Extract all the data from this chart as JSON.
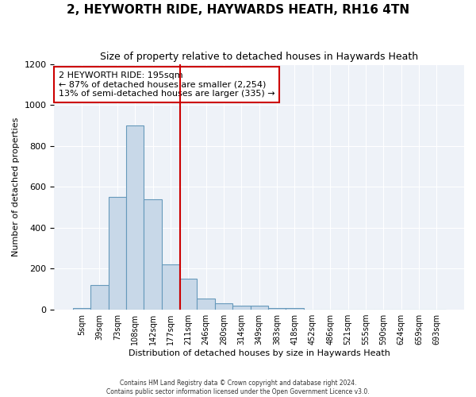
{
  "title": "2, HEYWORTH RIDE, HAYWARDS HEATH, RH16 4TN",
  "subtitle": "Size of property relative to detached houses in Haywards Heath",
  "xlabel": "Distribution of detached houses by size in Haywards Heath",
  "ylabel": "Number of detached properties",
  "bin_labels": [
    "5sqm",
    "39sqm",
    "73sqm",
    "108sqm",
    "142sqm",
    "177sqm",
    "211sqm",
    "246sqm",
    "280sqm",
    "314sqm",
    "349sqm",
    "383sqm",
    "418sqm",
    "452sqm",
    "486sqm",
    "521sqm",
    "555sqm",
    "590sqm",
    "624sqm",
    "659sqm",
    "693sqm"
  ],
  "bar_heights": [
    10,
    120,
    550,
    900,
    540,
    220,
    150,
    55,
    32,
    18,
    18,
    10,
    10,
    0,
    0,
    0,
    0,
    0,
    0,
    0,
    0
  ],
  "bar_color": "#c8d8e8",
  "bar_edge_color": "#6699bb",
  "bg_color": "#eef2f8",
  "vline_color": "#cc0000",
  "property_sqm": 195,
  "bin_start_sqm": [
    5,
    39,
    73,
    108,
    142,
    177,
    211,
    246,
    280,
    314,
    349,
    383,
    418,
    452,
    486,
    521,
    555,
    590,
    624,
    659,
    693
  ],
  "annotation_line1": "2 HEYWORTH RIDE: 195sqm",
  "annotation_line2": "← 87% of detached houses are smaller (2,254)",
  "annotation_line3": "13% of semi-detached houses are larger (335) →",
  "annotation_box_color": "#ffffff",
  "annotation_border_color": "#cc0000",
  "ylim": [
    0,
    1200
  ],
  "yticks": [
    0,
    200,
    400,
    600,
    800,
    1000,
    1200
  ],
  "footer_line1": "Contains HM Land Registry data © Crown copyright and database right 2024.",
  "footer_line2": "Contains public sector information licensed under the Open Government Licence v3.0."
}
